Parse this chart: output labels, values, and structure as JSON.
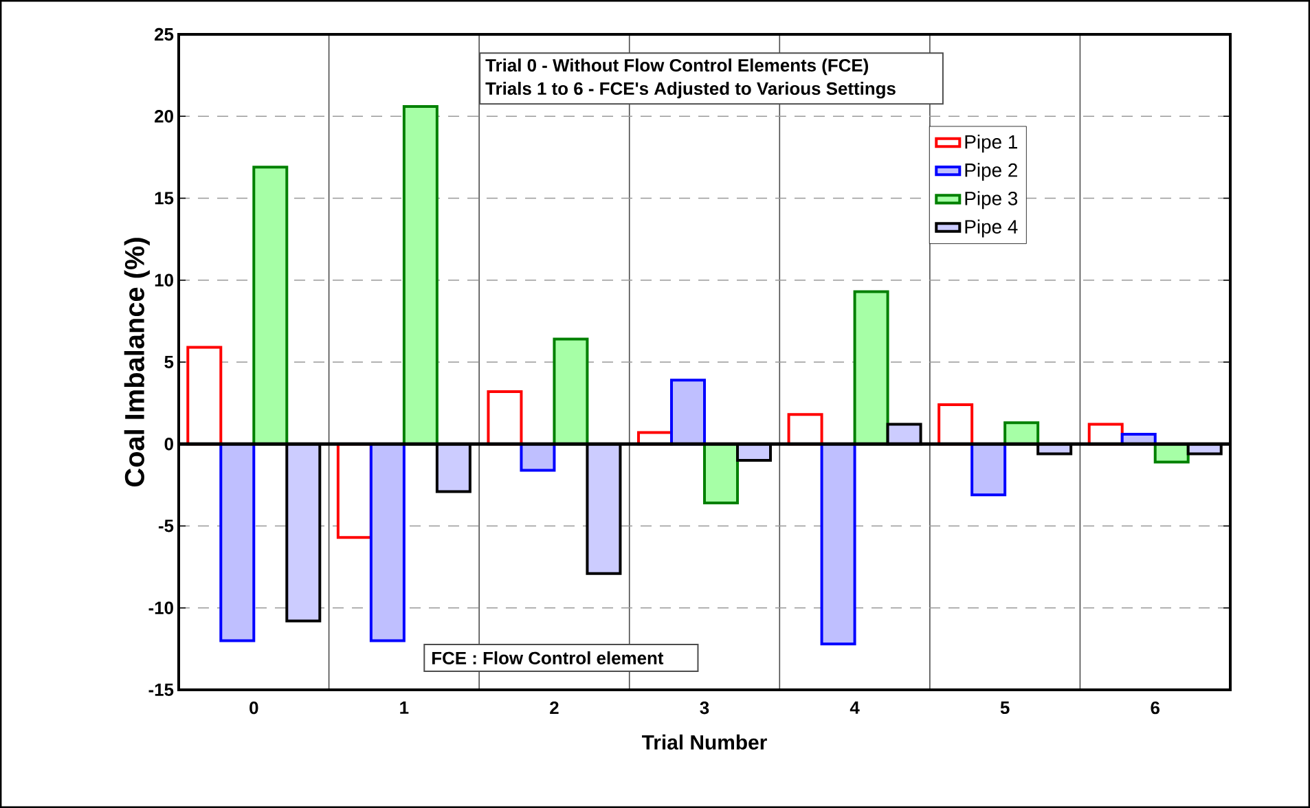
{
  "chart_data": {
    "type": "bar",
    "xlabel": "Trial Number",
    "ylabel": "Coal Imbalance (%)",
    "categories": [
      "0",
      "1",
      "2",
      "3",
      "4",
      "5",
      "6"
    ],
    "series": [
      {
        "name": "Pipe 1",
        "color": "#ff0000",
        "values": [
          5.9,
          -5.7,
          3.2,
          0.7,
          1.8,
          2.4,
          1.2
        ]
      },
      {
        "name": "Pipe 2",
        "color": "#0000ff",
        "values": [
          -12.0,
          -12.0,
          -1.6,
          3.9,
          -12.2,
          -3.1,
          0.6
        ]
      },
      {
        "name": "Pipe 3",
        "color": "#008000",
        "values": [
          16.9,
          20.6,
          6.4,
          -3.6,
          9.3,
          1.3,
          -1.1
        ]
      },
      {
        "name": "Pipe 4",
        "color": "#000000",
        "values": [
          -10.8,
          -2.9,
          -7.9,
          -1.0,
          1.2,
          -0.6,
          -0.6
        ]
      }
    ],
    "ylim": [
      -15,
      25
    ],
    "yticks": [
      -15,
      -10,
      -5,
      0,
      5,
      10,
      15,
      20,
      25
    ],
    "grid": "y",
    "legend": "top right",
    "annotations": [
      "Trial 0 - Without Flow Control Elements (FCE)",
      "Trials 1 to 6 - FCE's Adjusted to Various Settings",
      "FCE : Flow Control element"
    ]
  }
}
